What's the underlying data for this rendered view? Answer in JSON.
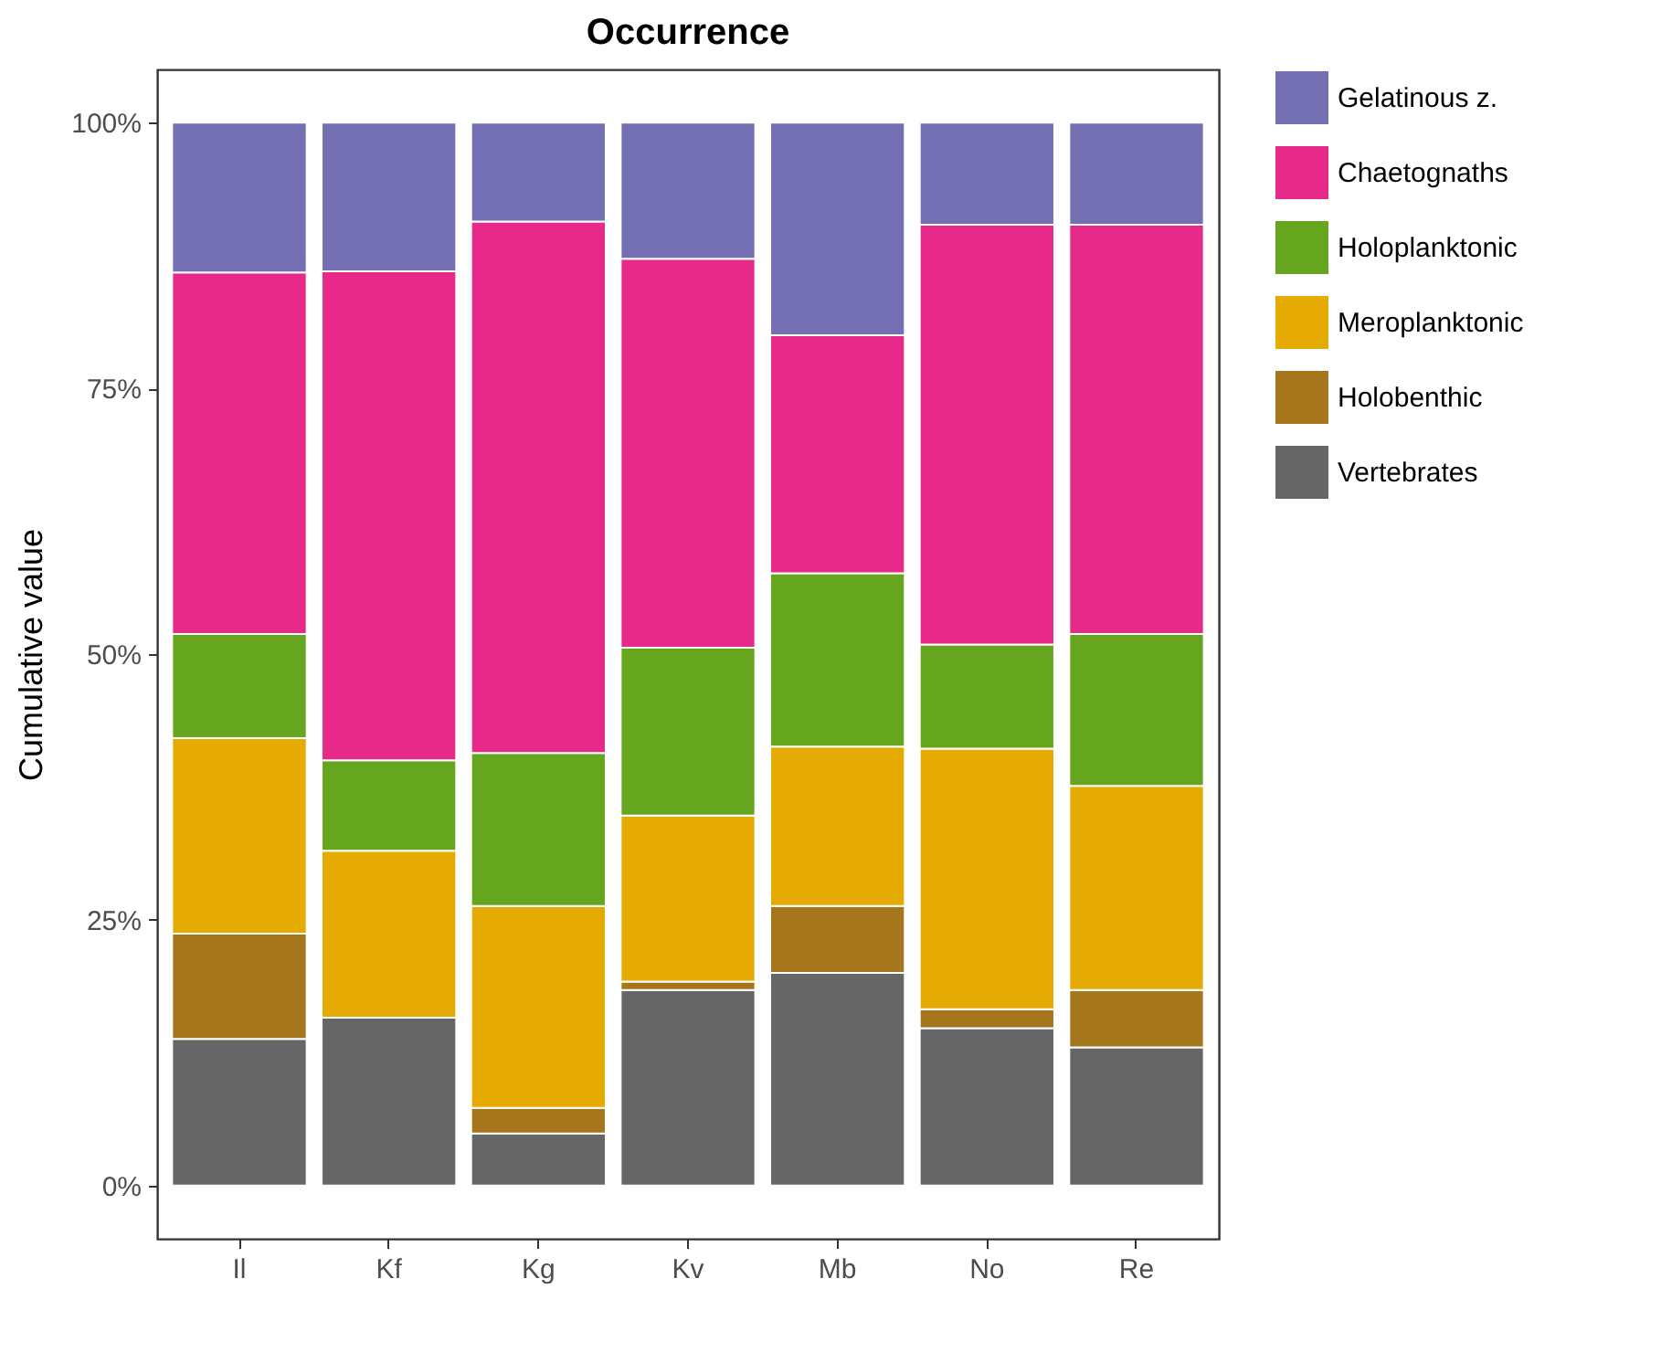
{
  "chart_data": {
    "type": "bar",
    "title": "Occurrence",
    "ylabel": "Cumulative value",
    "stacked": true,
    "legend": "right",
    "grid": false,
    "categories": [
      "Il",
      "Kf",
      "Kg",
      "Kv",
      "Mb",
      "No",
      "Re"
    ],
    "ylim": [
      -5,
      105
    ],
    "yticks": [
      {
        "value": 0,
        "label": "0%"
      },
      {
        "value": 25,
        "label": "25%"
      },
      {
        "value": 50,
        "label": "50%"
      },
      {
        "value": 75,
        "label": "75%"
      },
      {
        "value": 100,
        "label": "100%"
      }
    ],
    "series": [
      {
        "name": "Vertebrates",
        "color": "#666666",
        "values": [
          13.8,
          15.8,
          4.9,
          18.4,
          20.0,
          14.8,
          13.0
        ]
      },
      {
        "name": "Holobenthic",
        "color": "#a6761d",
        "values": [
          9.9,
          0,
          2.4,
          0.8,
          6.3,
          1.8,
          5.4
        ]
      },
      {
        "name": "Meroplanktonic",
        "color": "#e6ab02",
        "values": [
          18.4,
          15.7,
          19.0,
          15.6,
          15.0,
          24.5,
          19.2
        ]
      },
      {
        "name": "Holoplanktonic",
        "color": "#66a61e",
        "values": [
          9.8,
          8.5,
          14.4,
          15.8,
          16.3,
          9.8,
          14.3
        ]
      },
      {
        "name": "Chaetognaths",
        "color": "#e7298a",
        "values": [
          34.0,
          46.0,
          50.0,
          36.6,
          22.4,
          39.5,
          38.5
        ]
      },
      {
        "name": "Gelatinous z.",
        "color": "#7570b3",
        "values": [
          14.1,
          14.0,
          9.3,
          12.8,
          20.0,
          9.6,
          9.6
        ]
      }
    ]
  }
}
